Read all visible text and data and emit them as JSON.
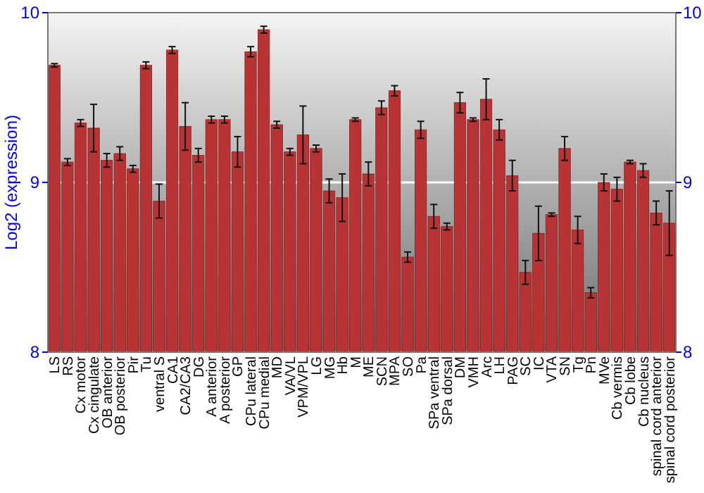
{
  "chart_data": {
    "type": "bar",
    "ylabel": "Log2 (expression)",
    "categories": [
      "LS",
      "RS",
      "Cx motor",
      "Cx cingulate",
      "OB anterior",
      "OB posterior",
      "Pir",
      "Tu",
      "ventral S",
      "CA1",
      "CA2/CA3",
      "DG",
      "A anterior",
      "A posterior",
      "GP",
      "CPu lateral",
      "CPu medial",
      "MD",
      "VA/VL",
      "VPM/VPL",
      "LG",
      "MG",
      "Hb",
      "M",
      "ME",
      "SCN",
      "MPA",
      "SO",
      "Pa",
      "SPa ventral",
      "SPa dorsal",
      "DM",
      "VMH",
      "Arc",
      "LH",
      "PAG",
      "SC",
      "IC",
      "VTA",
      "SN",
      "Tg",
      "Pn",
      "MVe",
      "Cb vermis",
      "Cb lobe",
      "Cb nucleus",
      "spinal cord anterior",
      "spinal cord posterior"
    ],
    "values": [
      9.69,
      9.12,
      9.35,
      9.32,
      9.13,
      9.17,
      9.08,
      9.69,
      8.89,
      9.78,
      9.33,
      9.16,
      9.37,
      9.37,
      9.18,
      9.77,
      9.9,
      9.34,
      9.18,
      9.28,
      9.2,
      8.95,
      8.91,
      9.37,
      9.05,
      9.44,
      9.54,
      8.56,
      9.31,
      8.8,
      8.74,
      9.47,
      9.37,
      9.49,
      9.31,
      9.04,
      8.47,
      8.7,
      8.81,
      9.2,
      8.72,
      8.35,
      9.0,
      8.96,
      9.12,
      9.07,
      8.82,
      8.76
    ],
    "errors": [
      0.01,
      0.02,
      0.02,
      0.14,
      0.04,
      0.04,
      0.02,
      0.02,
      0.1,
      0.02,
      0.14,
      0.04,
      0.02,
      0.02,
      0.09,
      0.03,
      0.02,
      0.02,
      0.02,
      0.17,
      0.02,
      0.07,
      0.14,
      0.01,
      0.07,
      0.04,
      0.03,
      0.03,
      0.05,
      0.07,
      0.02,
      0.06,
      0.01,
      0.12,
      0.06,
      0.09,
      0.07,
      0.16,
      0.01,
      0.07,
      0.08,
      0.03,
      0.05,
      0.07,
      0.01,
      0.04,
      0.07,
      0.19
    ],
    "color": "#b83434",
    "ylim": [
      8,
      10
    ],
    "yticks": [
      8,
      9,
      10
    ],
    "y2lim": [
      8,
      10
    ],
    "y2ticks": [
      8,
      9,
      10
    ],
    "grid": "y"
  }
}
